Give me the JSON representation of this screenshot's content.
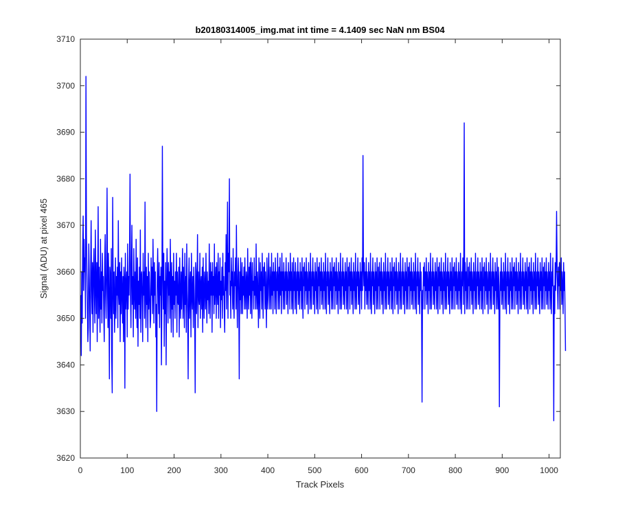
{
  "chart_data": {
    "type": "line",
    "title": "b20180314005_img.mat int time = 4.1409 sec  NaN nm BS04",
    "xlabel": "Track Pixels",
    "ylabel": "Signal (ADU) at pixel 465",
    "xlim": [
      0,
      1024
    ],
    "ylim": [
      3620,
      3710
    ],
    "xticks": [
      0,
      100,
      200,
      300,
      400,
      500,
      600,
      700,
      800,
      900,
      1000
    ],
    "yticks": [
      3620,
      3630,
      3640,
      3650,
      3660,
      3670,
      3680,
      3690,
      3700,
      3710
    ],
    "grid": false,
    "legend": "none",
    "line_color": "#0000ff",
    "series": [
      {
        "x_start": 1,
        "x_step": 1,
        "notable_points": [
          {
            "x": 2,
            "y": 3642
          },
          {
            "x": 6,
            "y": 3672
          },
          {
            "x": 12,
            "y": 3702
          },
          {
            "x": 62,
            "y": 3637
          },
          {
            "x": 68,
            "y": 3634
          },
          {
            "x": 106,
            "y": 3681
          },
          {
            "x": 165,
            "y": 3630
          },
          {
            "x": 178,
            "y": 3687
          },
          {
            "x": 332,
            "y": 3680
          },
          {
            "x": 366,
            "y": 3637
          },
          {
            "x": 570,
            "y": 3685
          },
          {
            "x": 722,
            "y": 3632
          },
          {
            "x": 800,
            "y": 3692
          },
          {
            "x": 878,
            "y": 3631
          },
          {
            "x": 996,
            "y": 3628
          },
          {
            "x": 1002,
            "y": 3673
          }
        ],
        "values": [
          3655,
          3642,
          3660,
          3649,
          3665,
          3672,
          3656,
          3667,
          3660,
          3663,
          3650,
          3702,
          3668,
          3660,
          3654,
          3645,
          3648,
          3666,
          3659,
          3652,
          3643,
          3660,
          3671,
          3656,
          3651,
          3662,
          3647,
          3660,
          3665,
          3655,
          3649,
          3669,
          3657,
          3651,
          3662,
          3645,
          3658,
          3674,
          3650,
          3661,
          3655,
          3647,
          3667,
          3652,
          3660,
          3649,
          3664,
          3656,
          3659,
          3651,
          3645,
          3662,
          3668,
          3655,
          3650,
          3660,
          3678,
          3656,
          3648,
          3664,
          3654,
          3637,
          3661,
          3659,
          3650,
          3665,
          3641,
          3634,
          3676,
          3658,
          3651,
          3660,
          3647,
          3653,
          3663,
          3650,
          3659,
          3655,
          3661,
          3648,
          3671,
          3656,
          3653,
          3662,
          3645,
          3660,
          3651,
          3663,
          3656,
          3649,
          3659,
          3645,
          3661,
          3658,
          3635,
          3664,
          3652,
          3657,
          3660,
          3646,
          3666,
          3652,
          3659,
          3655,
          3664,
          3681,
          3655,
          3648,
          3661,
          3670,
          3653,
          3659,
          3646,
          3665,
          3656,
          3652,
          3660,
          3650,
          3667,
          3655,
          3648,
          3663,
          3644,
          3658,
          3653,
          3661,
          3650,
          3669,
          3647,
          3659,
          3660,
          3654,
          3645,
          3664,
          3655,
          3660,
          3650,
          3675,
          3656,
          3648,
          3661,
          3653,
          3659,
          3645,
          3664,
          3652,
          3660,
          3656,
          3648,
          3650,
          3663,
          3655,
          3661,
          3651,
          3667,
          3657,
          3649,
          3662,
          3655,
          3660,
          3646,
          3653,
          3630,
          3658,
          3665,
          3657,
          3651,
          3662,
          3648,
          3659,
          3655,
          3661,
          3640,
          3654,
          3687,
          3660,
          3652,
          3664,
          3644,
          3658,
          3651,
          3662,
          3640,
          3656,
          3665,
          3659,
          3649,
          3662,
          3655,
          3660,
          3650,
          3667,
          3656,
          3647,
          3662,
          3652,
          3659,
          3646,
          3664,
          3653,
          3658,
          3650,
          3660,
          3655,
          3664,
          3647,
          3660,
          3654,
          3653,
          3661,
          3646,
          3663,
          3655,
          3650,
          3660,
          3652,
          3658,
          3665,
          3650,
          3661,
          3655,
          3648,
          3664,
          3653,
          3659,
          3647,
          3666,
          3656,
          3651,
          3637,
          3658,
          3663,
          3650,
          3657,
          3660,
          3646,
          3664,
          3655,
          3652,
          3659,
          3648,
          3661,
          3656,
          3650,
          3634,
          3662,
          3660,
          3651,
          3657,
          3668,
          3648,
          3660,
          3655,
          3653,
          3664,
          3650,
          3657,
          3659,
          3652,
          3661,
          3647,
          3663,
          3655,
          3650,
          3660,
          3657,
          3652,
          3664,
          3655,
          3649,
          3660,
          3654,
          3658,
          3651,
          3666,
          3656,
          3650,
          3662,
          3655,
          3660,
          3647,
          3662,
          3655,
          3659,
          3651,
          3666,
          3653,
          3657,
          3661,
          3650,
          3662,
          3656,
          3653,
          3664,
          3650,
          3660,
          3655,
          3663,
          3648,
          3658,
          3654,
          3661,
          3650,
          3664,
          3655,
          3659,
          3652,
          3647,
          3662,
          3656,
          3668,
          3652,
          3662,
          3675,
          3650,
          3664,
          3660,
          3680,
          3655,
          3658,
          3650,
          3663,
          3657,
          3660,
          3652,
          3665,
          3654,
          3650,
          3660,
          3657,
          3663,
          3652,
          3670,
          3656,
          3648,
          3659,
          3663,
          3655,
          3637,
          3660,
          3654,
          3663,
          3651,
          3657,
          3662,
          3651,
          3659,
          3655,
          3661,
          3652,
          3663,
          3656,
          3652,
          3660,
          3658,
          3650,
          3665,
          3656,
          3652,
          3661,
          3655,
          3662,
          3651,
          3663,
          3657,
          3650,
          3662,
          3656,
          3658,
          3652,
          3663,
          3655,
          3659,
          3652,
          3666,
          3656,
          3652,
          3660,
          3655,
          3648,
          3663,
          3656,
          3650,
          3662,
          3656,
          3660,
          3652,
          3664,
          3656,
          3650,
          3661,
          3657,
          3662,
          3652,
          3660,
          3655,
          3648,
          3663,
          3656,
          3652,
          3660,
          3664,
          3655,
          3652,
          3661,
          3657,
          3652,
          3664,
          3655,
          3660,
          3651,
          3662,
          3656,
          3660,
          3652,
          3663,
          3657,
          3651,
          3660,
          3656,
          3664,
          3652,
          3658,
          3661,
          3652,
          3663,
          3655,
          3660,
          3651,
          3664,
          3656,
          3660,
          3652,
          3662,
          3657,
          3652,
          3660,
          3656,
          3663,
          3653,
          3660,
          3657,
          3651,
          3662,
          3656,
          3660,
          3652,
          3664,
          3656,
          3660,
          3652,
          3662,
          3655,
          3651,
          3663,
          3656,
          3660,
          3652,
          3662,
          3657,
          3651,
          3660,
          3656,
          3663,
          3653,
          3660,
          3657,
          3652,
          3662,
          3656,
          3660,
          3652,
          3663,
          3656,
          3650,
          3661,
          3657,
          3662,
          3652,
          3660,
          3656,
          3663,
          3653,
          3660,
          3657,
          3651,
          3662,
          3656,
          3660,
          3652,
          3664,
          3656,
          3652,
          3660,
          3657,
          3663,
          3653,
          3660,
          3657,
          3651,
          3662,
          3656,
          3660,
          3652,
          3663,
          3656,
          3651,
          3661,
          3657,
          3662,
          3652,
          3660,
          3656,
          3663,
          3653,
          3660,
          3657,
          3652,
          3662,
          3656,
          3660,
          3652,
          3664,
          3656,
          3651,
          3660,
          3657,
          3663,
          3653,
          3660,
          3657,
          3651,
          3662,
          3656,
          3660,
          3652,
          3663,
          3656,
          3652,
          3661,
          3657,
          3662,
          3652,
          3660,
          3656,
          3663,
          3653,
          3660,
          3657,
          3651,
          3662,
          3656,
          3660,
          3652,
          3664,
          3656,
          3652,
          3660,
          3657,
          3663,
          3653,
          3660,
          3657,
          3652,
          3662,
          3656,
          3660,
          3652,
          3663,
          3656,
          3651,
          3661,
          3657,
          3662,
          3652,
          3660,
          3656,
          3663,
          3653,
          3660,
          3657,
          3651,
          3662,
          3656,
          3660,
          3652,
          3664,
          3656,
          3652,
          3660,
          3657,
          3663,
          3653,
          3660,
          3657,
          3651,
          3662,
          3656,
          3660,
          3652,
          3663,
          3656,
          3685,
          3661,
          3657,
          3662,
          3652,
          3660,
          3656,
          3663,
          3653,
          3660,
          3657,
          3652,
          3662,
          3656,
          3660,
          3652,
          3664,
          3656,
          3651,
          3660,
          3657,
          3663,
          3653,
          3660,
          3657,
          3651,
          3662,
          3656,
          3660,
          3652,
          3663,
          3656,
          3652,
          3661,
          3657,
          3662,
          3652,
          3660,
          3656,
          3663,
          3653,
          3660,
          3657,
          3651,
          3662,
          3656,
          3660,
          3652,
          3664,
          3656,
          3652,
          3660,
          3657,
          3663,
          3653,
          3660,
          3657,
          3652,
          3662,
          3656,
          3660,
          3652,
          3663,
          3656,
          3651,
          3661,
          3657,
          3662,
          3652,
          3660,
          3656,
          3663,
          3653,
          3660,
          3657,
          3651,
          3662,
          3656,
          3660,
          3652,
          3664,
          3656,
          3652,
          3660,
          3657,
          3663,
          3653,
          3660,
          3657,
          3651,
          3662,
          3656,
          3660,
          3652,
          3663,
          3656,
          3652,
          3661,
          3657,
          3662,
          3652,
          3660,
          3656,
          3663,
          3653,
          3660,
          3657,
          3652,
          3662,
          3656,
          3660,
          3652,
          3664,
          3656,
          3651,
          3660,
          3657,
          3663,
          3653,
          3660,
          3657,
          3651,
          3662,
          3656,
          3660,
          3652,
          3632,
          3656,
          3652,
          3661,
          3657,
          3662,
          3652,
          3660,
          3656,
          3663,
          3653,
          3660,
          3657,
          3651,
          3662,
          3656,
          3660,
          3652,
          3664,
          3656,
          3652,
          3660,
          3657,
          3663,
          3653,
          3660,
          3657,
          3652,
          3662,
          3656,
          3660,
          3652,
          3663,
          3656,
          3651,
          3661,
          3657,
          3662,
          3652,
          3660,
          3656,
          3663,
          3653,
          3660,
          3657,
          3651,
          3662,
          3656,
          3660,
          3652,
          3664,
          3656,
          3652,
          3660,
          3657,
          3663,
          3653,
          3660,
          3657,
          3651,
          3662,
          3656,
          3660,
          3652,
          3663,
          3656,
          3652,
          3661,
          3657,
          3662,
          3652,
          3660,
          3656,
          3663,
          3653,
          3660,
          3657,
          3652,
          3662,
          3656,
          3660,
          3652,
          3664,
          3656,
          3651,
          3660,
          3657,
          3663,
          3653,
          3660,
          3692,
          3651,
          3662,
          3656,
          3660,
          3652,
          3663,
          3656,
          3652,
          3661,
          3657,
          3662,
          3652,
          3660,
          3656,
          3663,
          3653,
          3660,
          3657,
          3651,
          3662,
          3656,
          3660,
          3652,
          3664,
          3656,
          3652,
          3660,
          3657,
          3663,
          3653,
          3660,
          3657,
          3652,
          3662,
          3656,
          3660,
          3652,
          3663,
          3656,
          3651,
          3661,
          3657,
          3662,
          3652,
          3660,
          3656,
          3663,
          3653,
          3660,
          3657,
          3651,
          3662,
          3656,
          3660,
          3652,
          3664,
          3656,
          3652,
          3660,
          3657,
          3663,
          3653,
          3660,
          3657,
          3651,
          3662,
          3656,
          3660,
          3652,
          3663,
          3656,
          3652,
          3661,
          3657,
          3631,
          3652,
          3660,
          3656,
          3663,
          3653,
          3660,
          3657,
          3652,
          3662,
          3656,
          3660,
          3652,
          3664,
          3656,
          3651,
          3660,
          3657,
          3663,
          3653,
          3660,
          3657,
          3651,
          3662,
          3656,
          3660,
          3652,
          3663,
          3656,
          3652,
          3661,
          3657,
          3662,
          3652,
          3660,
          3656,
          3663,
          3653,
          3660,
          3657,
          3651,
          3662,
          3656,
          3660,
          3652,
          3664,
          3656,
          3652,
          3660,
          3657,
          3663,
          3653,
          3660,
          3657,
          3652,
          3662,
          3656,
          3660,
          3652,
          3663,
          3656,
          3651,
          3661,
          3657,
          3662,
          3652,
          3660,
          3656,
          3663,
          3653,
          3660,
          3657,
          3651,
          3662,
          3656,
          3660,
          3652,
          3664,
          3656,
          3652,
          3660,
          3657,
          3663,
          3653,
          3660,
          3657,
          3651,
          3662,
          3656,
          3660,
          3652,
          3663,
          3656,
          3652,
          3661,
          3657,
          3662,
          3652,
          3660,
          3656,
          3663,
          3653,
          3660,
          3657,
          3652,
          3662,
          3656,
          3660,
          3652,
          3664,
          3656,
          3651,
          3660,
          3657,
          3663,
          3653,
          3628,
          3657,
          3651,
          3662,
          3656,
          3660,
          3673,
          3663,
          3656,
          3652,
          3661,
          3657,
          3662,
          3652,
          3660,
          3656,
          3663,
          3653,
          3660,
          3657,
          3651,
          3662,
          3656,
          3660,
          3652,
          3643
        ]
      }
    ]
  }
}
